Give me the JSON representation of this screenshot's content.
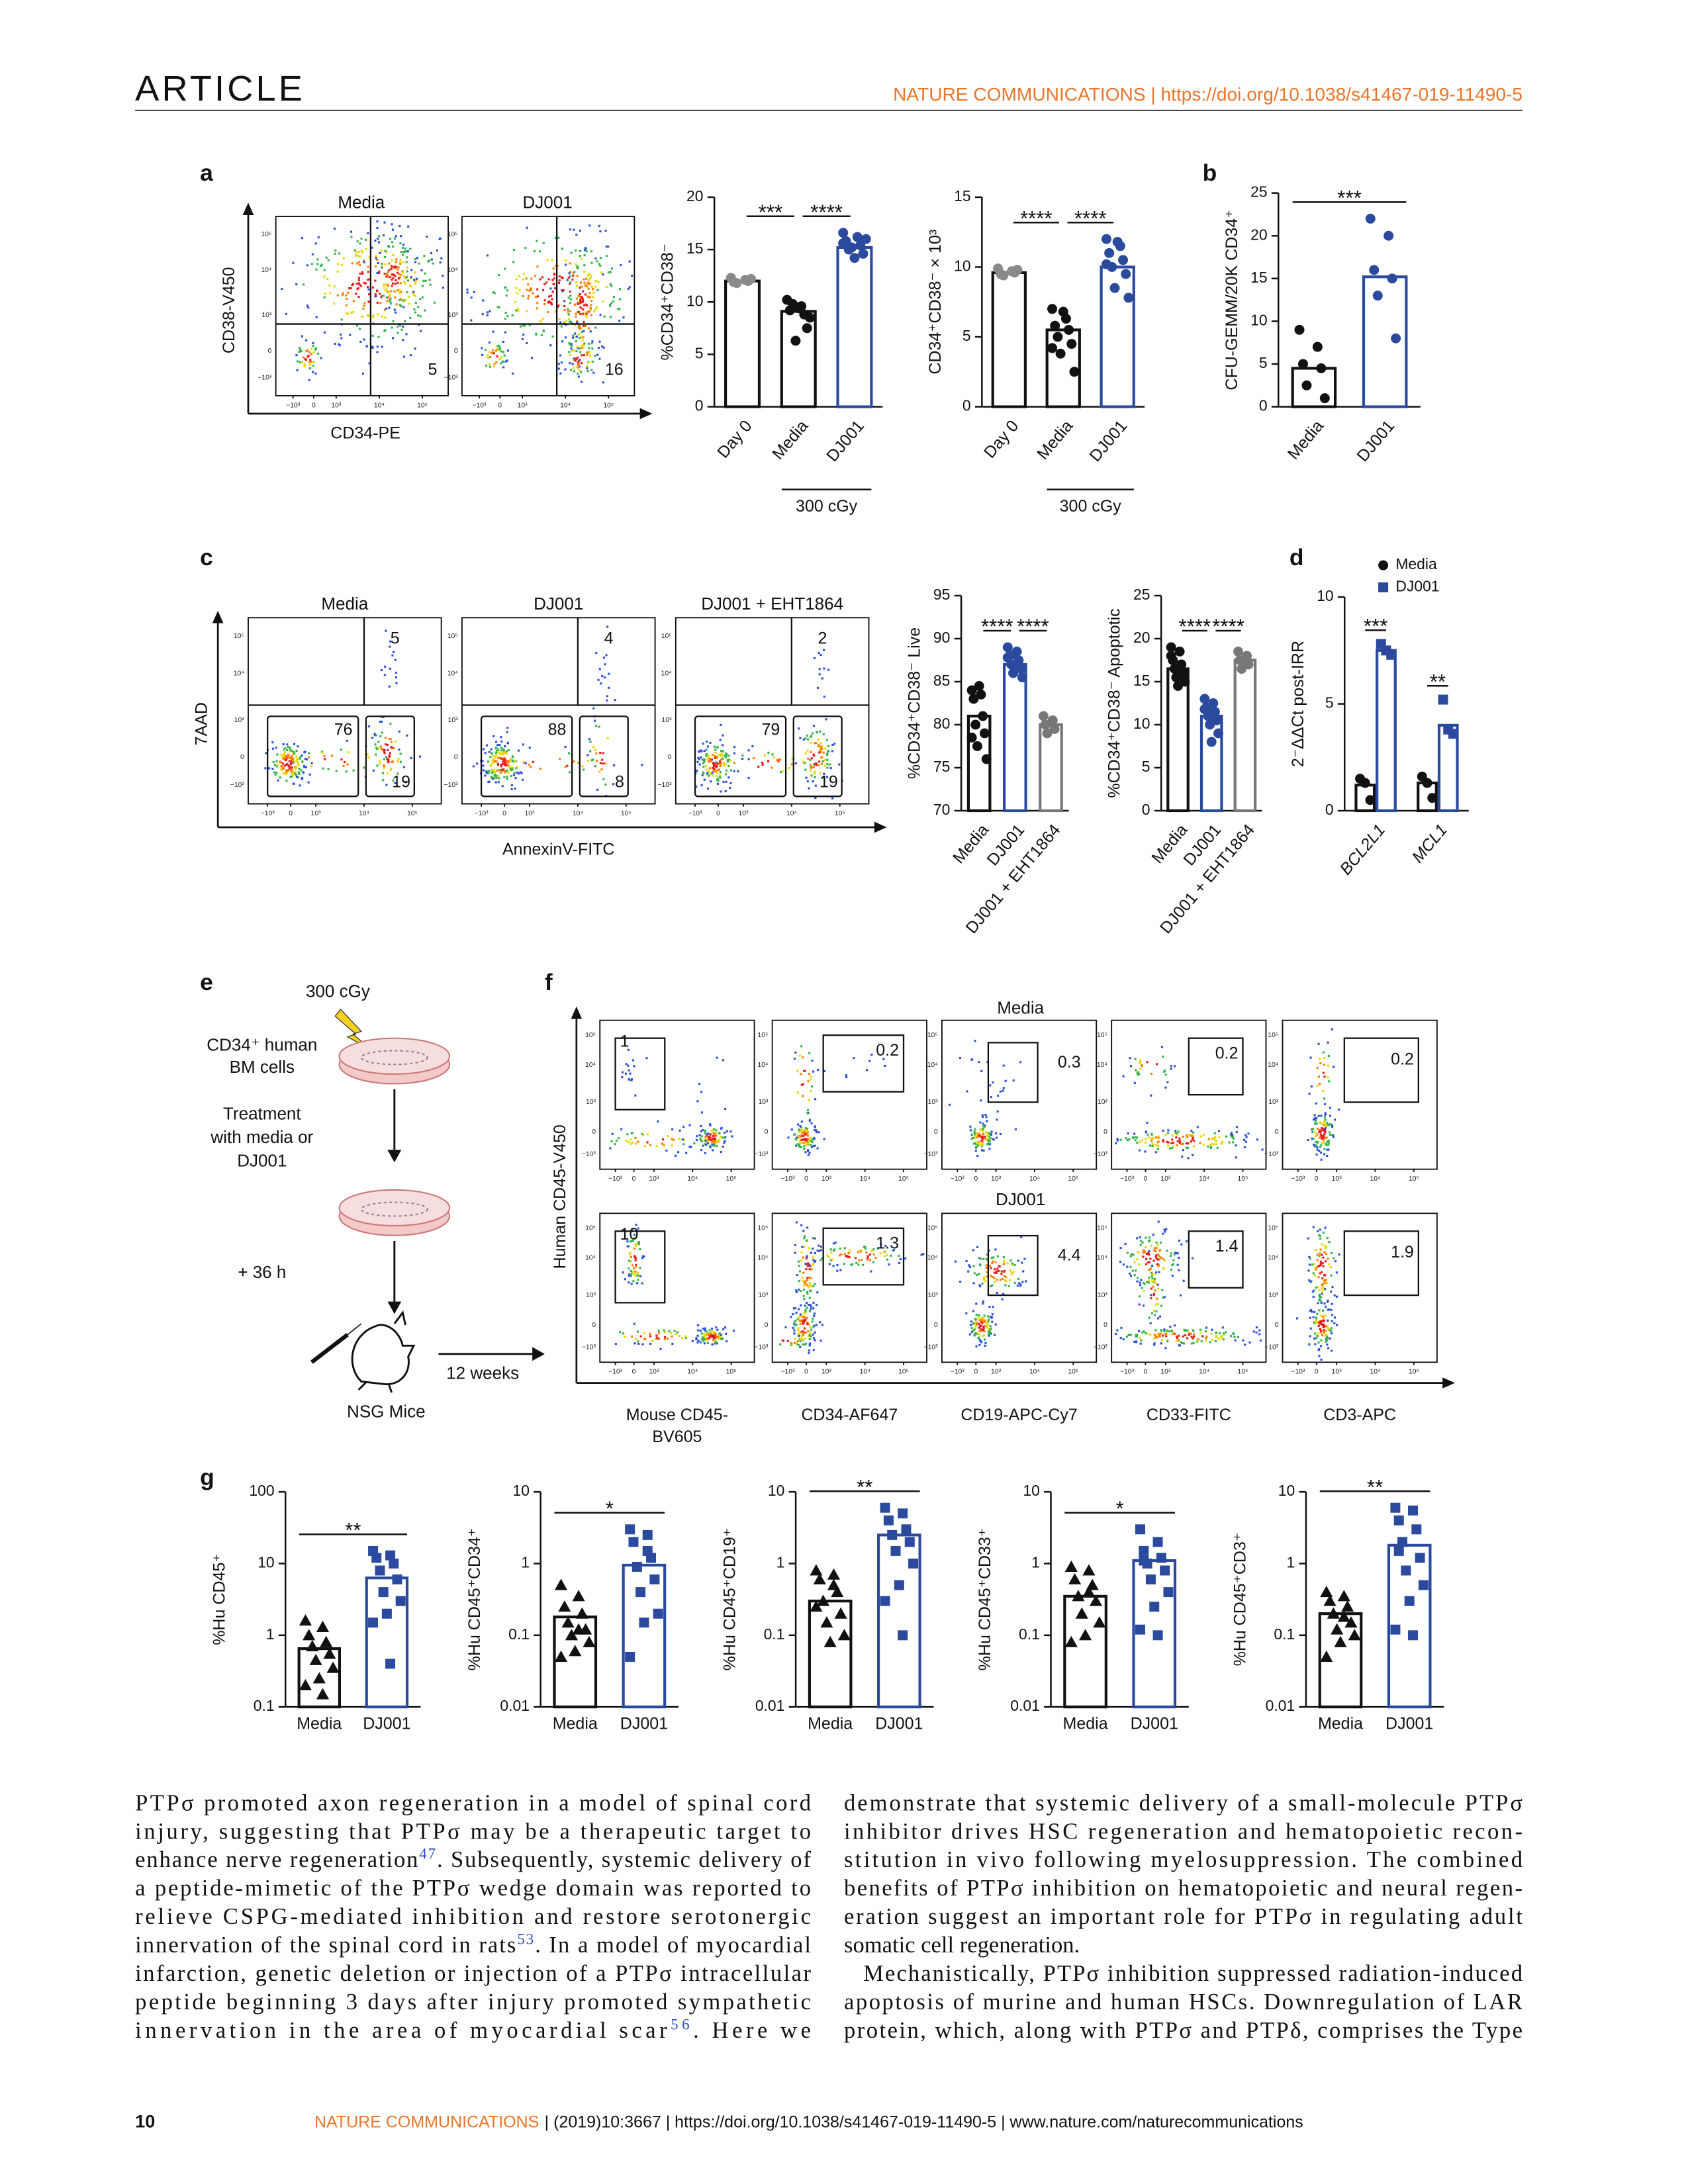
{
  "header": {
    "section": "ARTICLE",
    "journal": "NATURE COMMUNICATIONS | https://doi.org/10.1038/s41467-019-11490-5"
  },
  "figure": {
    "panels": [
      "a",
      "b",
      "c",
      "d",
      "e",
      "f",
      "g"
    ],
    "flow_a": {
      "ylabel": "CD38-V450",
      "xlabel": "CD34-PE",
      "ticks": [
        "−10³",
        "0",
        "10³",
        "10⁴",
        "10⁵"
      ],
      "plots": [
        {
          "title": "Media",
          "gates": [
            "5"
          ]
        },
        {
          "title": "DJ001",
          "gates": [
            "16"
          ]
        }
      ]
    },
    "flow_c": {
      "ylabel": "7AAD",
      "xlabel": "AnnexinV-FITC",
      "ticks": [
        "−10³",
        "0",
        "10³",
        "10⁴",
        "10⁵"
      ],
      "plots": [
        {
          "title": "Media",
          "gates": [
            "5",
            "76",
            "19"
          ]
        },
        {
          "title": "DJ001",
          "gates": [
            "4",
            "88",
            "8"
          ]
        },
        {
          "title": "DJ001 + EHT1864",
          "gates": [
            "2",
            "79",
            "19"
          ]
        }
      ]
    },
    "diagram_e": {
      "dose": "300 cGy",
      "cells": [
        "CD34⁺ human",
        "BM cells"
      ],
      "treatment": [
        "Treatment",
        "with media or",
        "DJ001"
      ],
      "time": "+ 36 h",
      "mice": "NSG Mice",
      "duration": "12 weeks"
    },
    "flow_f": {
      "ylabel": "Human CD45-V450",
      "ticks": [
        "−10³",
        "0",
        "10³",
        "10⁴",
        "10⁵"
      ],
      "rows": [
        "Media",
        "DJ001"
      ],
      "xlabels": [
        [
          "Mouse CD45-",
          "BV605"
        ],
        [
          "CD34-AF647"
        ],
        [
          "CD19-APC-Cy7"
        ],
        [
          "CD33-FITC"
        ],
        [
          "CD3-APC"
        ]
      ],
      "gates": [
        [
          "1",
          "0.2",
          "0.3",
          "0.2",
          "0.2"
        ],
        [
          "10",
          "1.3",
          "4.4",
          "1.4",
          "1.9"
        ]
      ]
    }
  },
  "chart_data": [
    {
      "type": "bar",
      "ylabel": "%CD34⁺CD38⁻",
      "categories": [
        "Day 0",
        "Media",
        "DJ001"
      ],
      "values": [
        12,
        9.1,
        15.2
      ],
      "points": [
        [
          12.3,
          12.1,
          11.9,
          12,
          11.8,
          12.2
        ],
        [
          10.2,
          9.6,
          9.2,
          8.8,
          9.8,
          7.5,
          6.3,
          8.5,
          9.4
        ],
        [
          16.6,
          16.2,
          15.8,
          15.4,
          15,
          14.6,
          15.2,
          16,
          14.2,
          15.6
        ]
      ],
      "bar_colors": [
        "#111111",
        "#111111",
        "#2b4a9e"
      ],
      "point_colors": [
        "#8a8a8a",
        "#111111",
        "#2b4a9e"
      ],
      "markers": [
        "circle",
        "circle",
        "circle"
      ],
      "ylim": [
        0,
        20
      ],
      "yticks": [
        0,
        5,
        10,
        15,
        20
      ],
      "significance": [
        "***",
        "****"
      ],
      "group_label": "300 cGy"
    },
    {
      "type": "bar",
      "ylabel": "CD34⁺CD38⁻ × 10³",
      "categories": [
        "Day 0",
        "Media",
        "DJ001"
      ],
      "values": [
        9.6,
        5.5,
        10
      ],
      "points": [
        [
          9.9,
          9.7,
          9.5,
          9.6,
          9.4,
          9.8
        ],
        [
          7,
          6.3,
          5.8,
          5.5,
          5,
          4.5,
          3.8,
          2.5,
          6.8,
          4.2
        ],
        [
          12,
          11.5,
          11,
          10.5,
          10,
          9.5,
          8.5,
          7.8,
          11.8,
          10.2
        ]
      ],
      "bar_colors": [
        "#111111",
        "#111111",
        "#2b4a9e"
      ],
      "point_colors": [
        "#8a8a8a",
        "#111111",
        "#2b4a9e"
      ],
      "markers": [
        "circle",
        "circle",
        "circle"
      ],
      "ylim": [
        0,
        15
      ],
      "yticks": [
        0,
        5,
        10,
        15
      ],
      "significance": [
        "****",
        "****"
      ],
      "group_label": "300 cGy"
    },
    {
      "type": "bar",
      "ylabel": "CFU-GEMM/20K CD34⁺",
      "categories": [
        "Media",
        "DJ001"
      ],
      "values": [
        4.5,
        15.2
      ],
      "points": [
        [
          9,
          7,
          5,
          4.5,
          2.5,
          1
        ],
        [
          22,
          20,
          16,
          15,
          13,
          8
        ]
      ],
      "bar_colors": [
        "#111111",
        "#2b4a9e"
      ],
      "point_colors": [
        "#111111",
        "#2b4a9e"
      ],
      "markers": [
        "circle",
        "circle"
      ],
      "ylim": [
        0,
        25
      ],
      "yticks": [
        0,
        5,
        10,
        15,
        20,
        25
      ],
      "significance": [
        "***"
      ]
    },
    {
      "type": "bar",
      "ylabel": "%CD34⁺CD38⁻ Live",
      "categories": [
        "Media",
        "DJ001",
        "DJ001 + EHT1864"
      ],
      "values": [
        81,
        87,
        80
      ],
      "points": [
        [
          84,
          83.5,
          83,
          81,
          80,
          79,
          77.5,
          76,
          84.5,
          78.5
        ],
        [
          89,
          88.5,
          88,
          87.5,
          87,
          86.5,
          86,
          85.5,
          88.2,
          87.8,
          86.8
        ],
        [
          81,
          80.5,
          80,
          79.5,
          79
        ]
      ],
      "bar_colors": [
        "#111111",
        "#2b4a9e",
        "#777777"
      ],
      "point_colors": [
        "#111111",
        "#2b4a9e",
        "#777777"
      ],
      "markers": [
        "circle",
        "circle",
        "circle"
      ],
      "ylim": [
        70,
        95
      ],
      "yticks": [
        70,
        75,
        80,
        85,
        90,
        95
      ],
      "significance": [
        "****",
        "****"
      ]
    },
    {
      "type": "bar",
      "ylabel": "%CD34⁺CD38⁻ Apoptotic",
      "categories": [
        "Media",
        "DJ001",
        "DJ001 + EHT1864"
      ],
      "values": [
        16.5,
        11,
        17.5
      ],
      "points": [
        [
          19,
          18.5,
          17.5,
          17,
          16.5,
          16,
          15.5,
          15,
          14.5,
          18,
          16.2
        ],
        [
          13,
          12.5,
          12,
          11.5,
          11,
          10.5,
          10,
          9,
          8,
          11.8
        ],
        [
          18.5,
          18,
          17.5,
          17,
          16.5
        ]
      ],
      "bar_colors": [
        "#111111",
        "#2b4a9e",
        "#777777"
      ],
      "point_colors": [
        "#111111",
        "#2b4a9e",
        "#777777"
      ],
      "markers": [
        "circle",
        "circle",
        "circle"
      ],
      "ylim": [
        0,
        25
      ],
      "yticks": [
        0,
        5,
        10,
        15,
        20,
        25
      ],
      "significance": [
        "****",
        "****"
      ]
    },
    {
      "type": "grouped_bar",
      "ylabel": "2⁻ΔΔCt post-IRR",
      "categories": [
        "BCL2L1",
        "MCL1"
      ],
      "category_style": "italic",
      "series": [
        {
          "name": "Media",
          "color": "#111111",
          "marker": "circle",
          "values": [
            1.2,
            1.3
          ],
          "points": [
            [
              1.5,
              1.3,
              0.5
            ],
            [
              1.6,
              1.3,
              0.6
            ]
          ]
        },
        {
          "name": "DJ001",
          "color": "#2b4a9e",
          "marker": "square",
          "values": [
            7.5,
            4.0
          ],
          "points": [
            [
              7.8,
              7.5,
              7.3
            ],
            [
              5.2,
              3.8,
              3.6
            ]
          ]
        }
      ],
      "ylim": [
        0,
        10
      ],
      "yticks": [
        0,
        5,
        10
      ],
      "significance": [
        "***",
        "**"
      ]
    },
    {
      "type": "bar",
      "log_scale": true,
      "ylabel": "%Hu CD45⁺",
      "categories": [
        "Media",
        "DJ001"
      ],
      "values": [
        0.65,
        6.3
      ],
      "points": [
        [
          1.6,
          1.3,
          1.0,
          0.8,
          0.7,
          0.55,
          0.45,
          0.35,
          0.25,
          0.2,
          0.15
        ],
        [
          15,
          13,
          12,
          10,
          8,
          6,
          4,
          3,
          2,
          1.5,
          0.4
        ]
      ],
      "bar_colors": [
        "#111111",
        "#2b4a9e"
      ],
      "point_colors": [
        "#111111",
        "#2b4a9e"
      ],
      "markers": [
        "triangle",
        "square"
      ],
      "ylim": [
        0.1,
        100
      ],
      "yticks": [
        0.1,
        1,
        10,
        100
      ],
      "significance": [
        "**"
      ]
    },
    {
      "type": "bar",
      "log_scale": true,
      "ylabel": "%Hu CD45⁺CD34⁺",
      "categories": [
        "Media",
        "DJ001"
      ],
      "values": [
        0.18,
        0.95
      ],
      "points": [
        [
          0.5,
          0.35,
          0.25,
          0.2,
          0.15,
          0.12,
          0.1,
          0.08,
          0.06,
          0.05,
          0.12
        ],
        [
          3,
          2.5,
          2,
          1.2,
          0.9,
          0.6,
          0.4,
          0.2,
          0.15,
          0.05,
          1.5
        ]
      ],
      "bar_colors": [
        "#111111",
        "#2b4a9e"
      ],
      "point_colors": [
        "#111111",
        "#2b4a9e"
      ],
      "markers": [
        "triangle",
        "square"
      ],
      "ylim": [
        0.01,
        10
      ],
      "yticks": [
        0.01,
        0.1,
        1,
        10
      ],
      "significance": [
        "*"
      ]
    },
    {
      "type": "bar",
      "log_scale": true,
      "ylabel": "%Hu CD45⁺CD19⁺",
      "categories": [
        "Media",
        "DJ001"
      ],
      "values": [
        0.3,
        2.5
      ],
      "points": [
        [
          0.8,
          0.7,
          0.6,
          0.4,
          0.3,
          0.2,
          0.15,
          0.1,
          0.08,
          0.25,
          0.5
        ],
        [
          6,
          5,
          4,
          3,
          2.5,
          2,
          1.5,
          1,
          0.5,
          0.3,
          0.1
        ]
      ],
      "bar_colors": [
        "#111111",
        "#2b4a9e"
      ],
      "point_colors": [
        "#111111",
        "#2b4a9e"
      ],
      "markers": [
        "triangle",
        "square"
      ],
      "ylim": [
        0.01,
        10
      ],
      "yticks": [
        0.01,
        0.1,
        1,
        10
      ],
      "significance": [
        "**"
      ]
    },
    {
      "type": "bar",
      "log_scale": true,
      "ylabel": "%Hu CD45⁺CD33⁺",
      "categories": [
        "Media",
        "DJ001"
      ],
      "values": [
        0.35,
        1.1
      ],
      "points": [
        [
          0.9,
          0.8,
          0.6,
          0.5,
          0.35,
          0.3,
          0.2,
          0.15,
          0.1,
          0.08,
          0.4
        ],
        [
          3,
          2,
          1.5,
          1.2,
          1,
          0.8,
          0.6,
          0.4,
          0.25,
          0.12,
          0.1,
          1.1
        ]
      ],
      "bar_colors": [
        "#111111",
        "#2b4a9e"
      ],
      "point_colors": [
        "#111111",
        "#2b4a9e"
      ],
      "markers": [
        "triangle",
        "square"
      ],
      "ylim": [
        0.01,
        10
      ],
      "yticks": [
        0.01,
        0.1,
        1,
        10
      ],
      "significance": [
        "*"
      ]
    },
    {
      "type": "bar",
      "log_scale": true,
      "ylabel": "%Hu CD45⁺CD3⁺",
      "categories": [
        "Media",
        "DJ001"
      ],
      "values": [
        0.2,
        1.8
      ],
      "points": [
        [
          0.4,
          0.35,
          0.3,
          0.25,
          0.2,
          0.15,
          0.12,
          0.1,
          0.08,
          0.05,
          0.18
        ],
        [
          6,
          5.5,
          4,
          3,
          2,
          1.2,
          0.8,
          0.5,
          0.3,
          0.12,
          0.1,
          1.5
        ]
      ],
      "bar_colors": [
        "#111111",
        "#2b4a9e"
      ],
      "point_colors": [
        "#111111",
        "#2b4a9e"
      ],
      "markers": [
        "triangle",
        "square"
      ],
      "ylim": [
        0.01,
        10
      ],
      "yticks": [
        0.01,
        0.1,
        1,
        10
      ],
      "significance": [
        "**"
      ]
    }
  ],
  "body": {
    "columns": [
      [
        [
          "PTPσ promoted axon regeneration in a model of spinal cord",
          "injury, suggesting that PTPσ may be a therapeutic target to",
          [
            "enhance nerve regeneration",
            "47",
            ". Subsequently, systemic delivery of"
          ],
          "a peptide-mimetic of the PTPσ wedge domain was reported to",
          "relieve CSPG-mediated inhibition and restore serotonergic",
          [
            "innervation of the spinal cord in rats",
            "53",
            ". In a model of myocardial"
          ],
          "infarction, genetic deletion or injection of a PTPσ intracellular",
          "peptide beginning 3 days after injury promoted sympathetic",
          [
            "innervation in the area of myocardial scar",
            "56",
            ". Here we"
          ]
        ]
      ],
      [
        [
          "demonstrate that systemic delivery of a small-molecule PTPσ",
          "inhibitor drives HSC regeneration and hematopoietic recon-",
          "stitution in vivo following myelosuppression. The combined",
          "benefits of PTPσ inhibition on hematopoietic and neural regen-",
          "eration suggest an important role for PTPσ in regulating adult",
          "somatic cell regeneration."
        ],
        [
          "Mechanistically, PTPσ inhibition suppressed radiation-induced",
          "apoptosis of murine and human HSCs. Downregulation of LAR",
          "protein, which, along with PTPσ and PTPδ, comprises the Type"
        ]
      ]
    ]
  },
  "footer": {
    "page": "10",
    "journal": "NATURE COMMUNICATIONS",
    "details": "| (2019)10:3667 | https://doi.org/10.1038/s41467-019-11490-5 | www.nature.com/naturecommunications"
  }
}
